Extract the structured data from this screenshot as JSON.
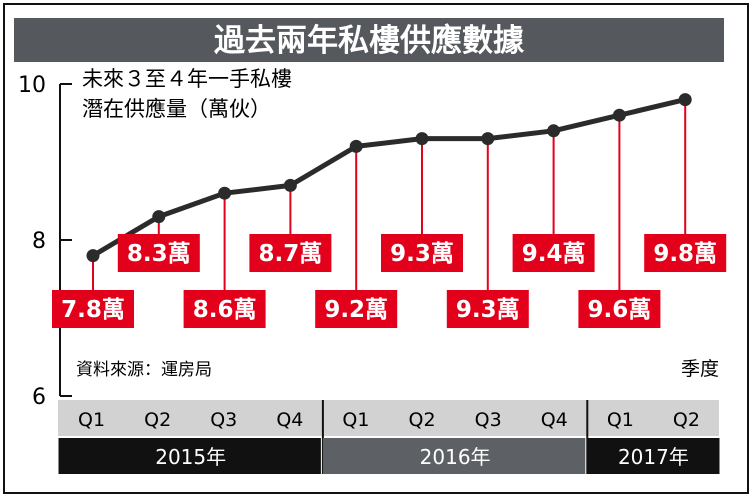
{
  "chart_data": {
    "type": "line",
    "title": "過去兩年私樓供應數據",
    "subtitle": [
      "未來３至４年一手私樓",
      "潛在供應量（萬伙）"
    ],
    "unit": "萬",
    "x": [
      "Q1",
      "Q2",
      "Q3",
      "Q4",
      "Q1",
      "Q2",
      "Q3",
      "Q4",
      "Q1",
      "Q2"
    ],
    "years": [
      {
        "label": "2015年",
        "span": 4
      },
      {
        "label": "2016年",
        "span": 4
      },
      {
        "label": "2017年",
        "span": 2
      }
    ],
    "values": [
      7.8,
      8.3,
      8.6,
      8.7,
      9.2,
      9.3,
      9.3,
      9.4,
      9.6,
      9.8
    ],
    "label_position": [
      "below",
      "above",
      "below",
      "above",
      "below",
      "above",
      "below",
      "above",
      "below",
      "above"
    ],
    "ylim": [
      6,
      10
    ],
    "yticks": [
      6,
      8,
      10
    ],
    "xlabel": "季度",
    "source": "資料來源：運房局",
    "grid": false,
    "legend": "none"
  },
  "colors": {
    "title_bar": "#55585c",
    "line": "#2b2b2b",
    "marker": "#2b2b2b",
    "label_box": "#e3001b",
    "stem": "#e3001b",
    "quarter_band": "#d2d2d2",
    "year_dark": "#111111",
    "year_mid": "#5d6166"
  }
}
